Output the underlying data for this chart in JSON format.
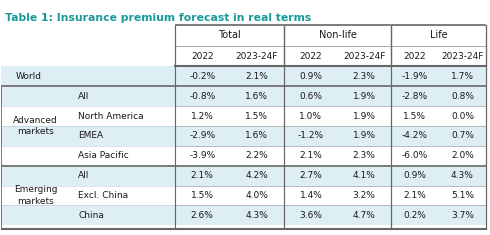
{
  "title": "Table 1: Insurance premium forecast in real terms",
  "title_color": "#1a9999",
  "col_groups": [
    "Total",
    "Non-life",
    "Life"
  ],
  "col_headers": [
    "2022",
    "2023-24F",
    "2022",
    "2023-24F",
    "2022",
    "2023-24F"
  ],
  "rows": [
    {
      "group": "World",
      "sub": "",
      "values": [
        "-0.2%",
        "2.1%",
        "0.9%",
        "2.3%",
        "-1.9%",
        "1.7%"
      ],
      "section": "world"
    },
    {
      "group": "Advanced\nmarkets",
      "sub": "All",
      "values": [
        "-0.8%",
        "1.6%",
        "0.6%",
        "1.9%",
        "-2.8%",
        "0.8%"
      ],
      "section": "advanced"
    },
    {
      "group": "",
      "sub": "North America",
      "values": [
        "1.2%",
        "1.5%",
        "1.0%",
        "1.9%",
        "1.5%",
        "0.0%"
      ],
      "section": "advanced"
    },
    {
      "group": "",
      "sub": "EMEA",
      "values": [
        "-2.9%",
        "1.6%",
        "-1.2%",
        "1.9%",
        "-4.2%",
        "0.7%"
      ],
      "section": "advanced"
    },
    {
      "group": "",
      "sub": "Asia Pacific",
      "values": [
        "-3.9%",
        "2.2%",
        "2.1%",
        "2.3%",
        "-6.0%",
        "2.0%"
      ],
      "section": "advanced"
    },
    {
      "group": "Emerging\nmarkets",
      "sub": "All",
      "values": [
        "2.1%",
        "4.2%",
        "2.7%",
        "4.1%",
        "0.9%",
        "4.3%"
      ],
      "section": "emerging"
    },
    {
      "group": "",
      "sub": "Excl. China",
      "values": [
        "1.5%",
        "4.0%",
        "1.4%",
        "3.2%",
        "2.1%",
        "5.1%"
      ],
      "section": "emerging"
    },
    {
      "group": "",
      "sub": "China",
      "values": [
        "2.6%",
        "4.3%",
        "3.6%",
        "4.7%",
        "0.2%",
        "3.7%"
      ],
      "section": "emerging"
    }
  ],
  "row_bg": [
    "#deeef5",
    "#deeef5",
    "#ffffff",
    "#deeef5",
    "#ffffff",
    "#deeef5",
    "#ffffff",
    "#deeef5"
  ],
  "bg_color": "#ffffff",
  "text_color": "#1a1a1a",
  "border_dark": "#666666",
  "border_light": "#aaaaaa"
}
